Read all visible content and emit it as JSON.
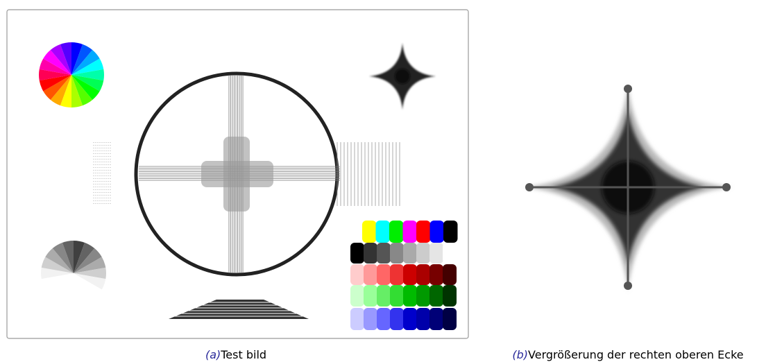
{
  "figure": {
    "panels": [
      {
        "label": "(a)",
        "caption": "Test bild"
      },
      {
        "label": "(b)",
        "caption": "Vergrößerung der rechten oberen Ecke"
      }
    ]
  }
}
